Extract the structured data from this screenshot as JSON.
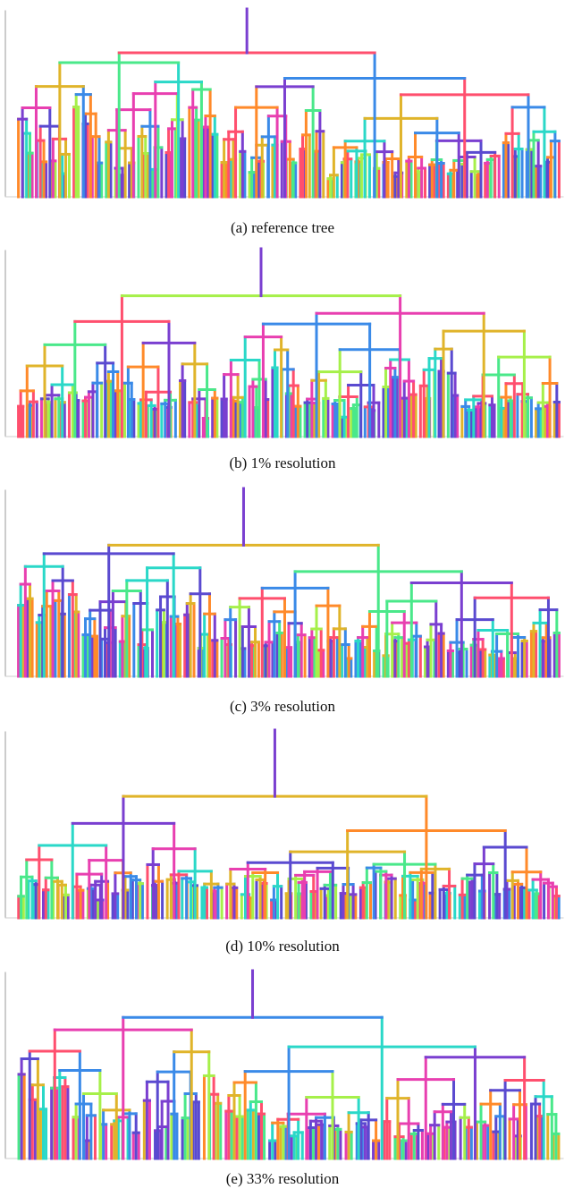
{
  "figure": {
    "panels": [
      {
        "id": "a",
        "caption": "(a) reference tree",
        "leaves": 118,
        "seed": 11
      },
      {
        "id": "b",
        "caption": "(b) 1% resolution",
        "leaves": 118,
        "seed": 23
      },
      {
        "id": "c",
        "caption": "(c) 3% resolution",
        "leaves": 118,
        "seed": 37
      },
      {
        "id": "d",
        "caption": "(d) 10% resolution",
        "leaves": 110,
        "seed": 51
      },
      {
        "id": "e",
        "caption": "(e) 33% resolution",
        "leaves": 100,
        "seed": 67
      }
    ],
    "palette": [
      "#7a3fd0",
      "#e83fb0",
      "#ff4f6e",
      "#ff8a2a",
      "#e0b42a",
      "#a6f04a",
      "#4ae88a",
      "#2ad8c8",
      "#3a8ae8",
      "#5a4ad0"
    ]
  }
}
